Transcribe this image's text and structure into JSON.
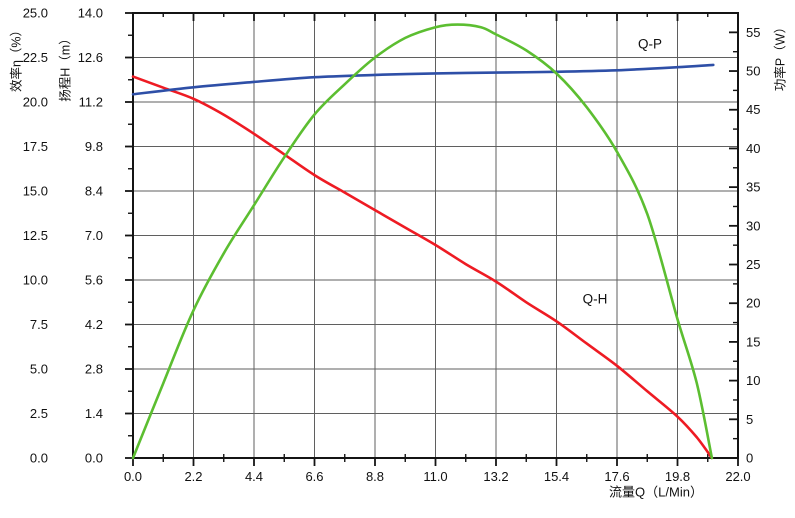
{
  "colors": {
    "background": "#ffffff",
    "spine": "#141414",
    "grid": "#5f5f5f",
    "tick": "#141414",
    "text": "#111111",
    "q_h_red": "#ee1b23",
    "q_p_blue": "#2e4fa7",
    "efficiency_green": "#5cbe31"
  },
  "chart_data": {
    "type": "line",
    "title": "",
    "grid": true,
    "x_axis": {
      "label": "流量Q（L/Min）",
      "min": 0,
      "max": 22,
      "major_step": 2.2,
      "minor_step": 1.1,
      "tick_labels": [
        "0.0",
        "2.2",
        "4.4",
        "6.6",
        "8.8",
        "11.0",
        "13.2",
        "15.4",
        "17.6",
        "19.8",
        "22.0"
      ]
    },
    "efficiency_axis": {
      "label": "效率η（%）",
      "side": "left-outer",
      "min": 0,
      "max": 25,
      "major_step": 2.5,
      "tick_labels": [
        "0.0",
        "2.5",
        "5.0",
        "7.5",
        "10.0",
        "12.5",
        "15.0",
        "17.5",
        "20.0",
        "22.5",
        "25.0"
      ]
    },
    "head_axis": {
      "label": "扬程H（m）",
      "side": "left-inner",
      "min": 0,
      "max": 14,
      "major_step": 1.4,
      "minor_step": 0.7,
      "tick_labels": [
        "0.0",
        "1.4",
        "2.8",
        "4.2",
        "5.6",
        "7.0",
        "8.4",
        "9.8",
        "11.2",
        "12.6",
        "14.0"
      ]
    },
    "power_axis": {
      "label": "功率P（W）",
      "side": "right",
      "min": 0,
      "max_labeled": 55,
      "axis_top_value": 57.5,
      "major_step": 5,
      "minor_step": 2.5,
      "tick_labels": [
        "0",
        "5",
        "10",
        "15",
        "20",
        "25",
        "30",
        "35",
        "40",
        "45",
        "50",
        "55"
      ]
    },
    "series": [
      {
        "id": "q_h",
        "label": "Q-H",
        "axis": "head",
        "color": "#ee1b23",
        "points": [
          [
            0,
            12.0
          ],
          [
            1.1,
            11.65
          ],
          [
            2.2,
            11.3
          ],
          [
            3.3,
            10.8
          ],
          [
            4.4,
            10.2
          ],
          [
            5.5,
            9.55
          ],
          [
            6.6,
            8.9
          ],
          [
            7.7,
            8.35
          ],
          [
            8.8,
            7.8
          ],
          [
            9.9,
            7.25
          ],
          [
            11.0,
            6.7
          ],
          [
            12.1,
            6.1
          ],
          [
            13.2,
            5.55
          ],
          [
            14.3,
            4.9
          ],
          [
            15.4,
            4.3
          ],
          [
            16.5,
            3.6
          ],
          [
            17.6,
            2.9
          ],
          [
            18.7,
            2.1
          ],
          [
            19.8,
            1.3
          ],
          [
            20.5,
            0.65
          ],
          [
            21.05,
            0
          ]
        ]
      },
      {
        "id": "q_p",
        "label": "Q-P",
        "axis": "power",
        "color": "#2e4fa7",
        "points": [
          [
            0,
            47.0
          ],
          [
            2.2,
            47.9
          ],
          [
            4.4,
            48.6
          ],
          [
            6.6,
            49.2
          ],
          [
            8.8,
            49.5
          ],
          [
            11.0,
            49.7
          ],
          [
            13.2,
            49.8
          ],
          [
            15.4,
            49.9
          ],
          [
            17.6,
            50.1
          ],
          [
            19.8,
            50.5
          ],
          [
            21.1,
            50.8
          ]
        ]
      },
      {
        "id": "efficiency",
        "label": "",
        "axis": "efficiency",
        "color": "#5cbe31",
        "points": [
          [
            0,
            0
          ],
          [
            1.1,
            4.2
          ],
          [
            2.2,
            8.3
          ],
          [
            3.3,
            11.5
          ],
          [
            4.4,
            14.2
          ],
          [
            5.5,
            16.9
          ],
          [
            6.6,
            19.3
          ],
          [
            7.7,
            21.0
          ],
          [
            8.8,
            22.5
          ],
          [
            9.9,
            23.6
          ],
          [
            11.0,
            24.2
          ],
          [
            11.8,
            24.35
          ],
          [
            12.65,
            24.2
          ],
          [
            13.2,
            23.8
          ],
          [
            14.3,
            22.9
          ],
          [
            15.4,
            21.6
          ],
          [
            16.5,
            19.7
          ],
          [
            17.6,
            17.2
          ],
          [
            18.7,
            13.7
          ],
          [
            19.8,
            7.8
          ],
          [
            20.5,
            4.2
          ],
          [
            21.05,
            0
          ]
        ]
      }
    ],
    "annotations": [
      {
        "text": "Q-P",
        "axis": "power",
        "q": 18.8,
        "value": 53.5
      },
      {
        "text": "Q-H",
        "axis": "head",
        "q": 16.8,
        "value": 5.0
      }
    ]
  }
}
